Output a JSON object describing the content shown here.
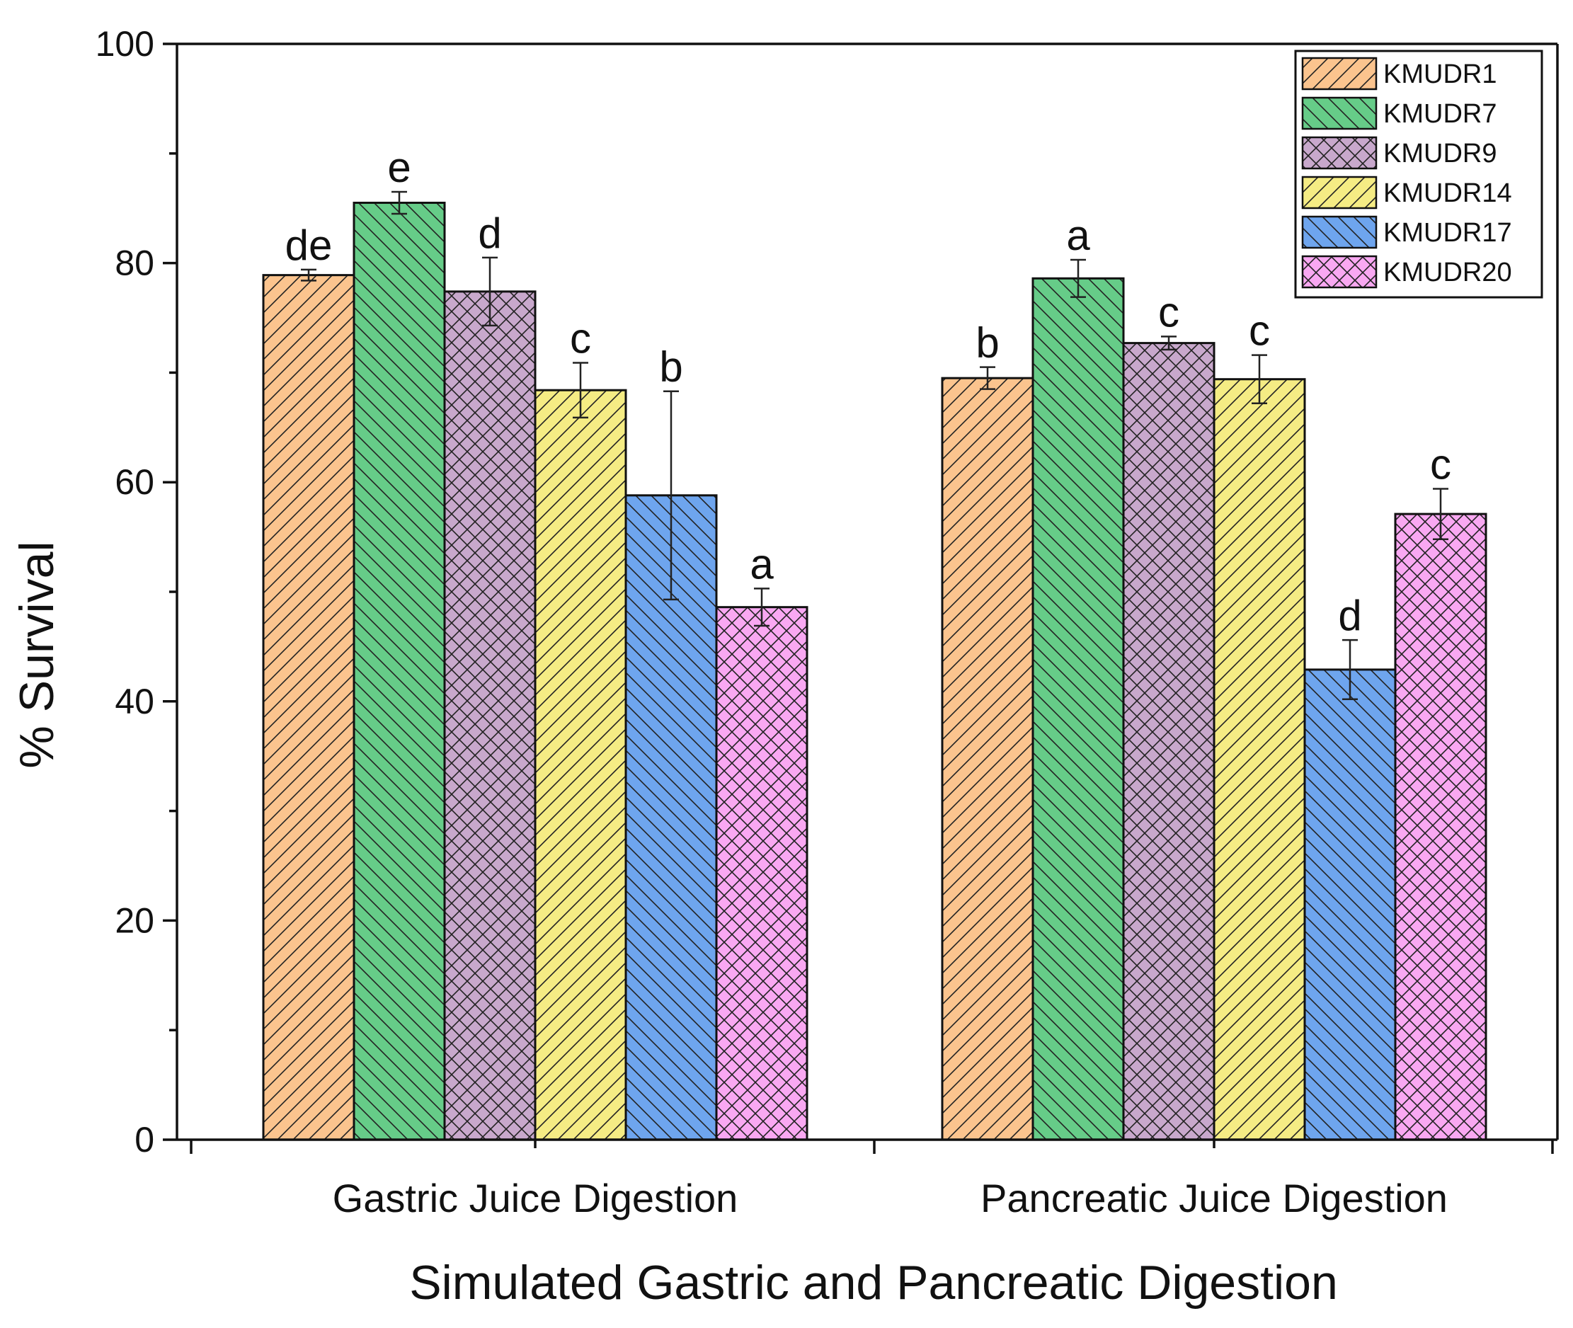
{
  "chart_data": {
    "type": "bar",
    "title": "",
    "xlabel": "Simulated Gastric and Pancreatic Digestion",
    "ylabel": "% Survival",
    "ylim": [
      0,
      100
    ],
    "yticks": [
      0,
      20,
      40,
      60,
      80,
      100
    ],
    "grid": false,
    "legend_position": "top-right",
    "categories": [
      "Gastric Juice Digestion",
      "Pancreatic Juice Digestion"
    ],
    "series": [
      {
        "name": "KMUDR1",
        "color": "#FBC48E",
        "pattern": "diag-right",
        "values": [
          78.9,
          69.5
        ],
        "errors": [
          0.5,
          1.0
        ],
        "sig": [
          "de",
          "b"
        ]
      },
      {
        "name": "KMUDR7",
        "color": "#66CC88",
        "pattern": "diag-left",
        "values": [
          85.5,
          78.6
        ],
        "errors": [
          1.0,
          1.7
        ],
        "sig": [
          "e",
          "a"
        ]
      },
      {
        "name": "KMUDR9",
        "color": "#C8A8CC",
        "pattern": "cross",
        "values": [
          77.4,
          72.7
        ],
        "errors": [
          3.1,
          0.6
        ],
        "sig": [
          "d",
          "c"
        ]
      },
      {
        "name": "KMUDR14",
        "color": "#F5EC84",
        "pattern": "diag-right",
        "values": [
          68.4,
          69.4
        ],
        "errors": [
          2.5,
          2.2
        ],
        "sig": [
          "c",
          "c"
        ]
      },
      {
        "name": "KMUDR17",
        "color": "#6EA5EE",
        "pattern": "diag-left",
        "values": [
          58.8,
          42.9
        ],
        "errors": [
          9.5,
          2.7
        ],
        "sig": [
          "b",
          "d"
        ]
      },
      {
        "name": "KMUDR20",
        "color": "#F9A8F2",
        "pattern": "cross",
        "values": [
          48.6,
          57.1
        ],
        "errors": [
          1.7,
          2.3
        ],
        "sig": [
          "a",
          "c"
        ]
      }
    ]
  }
}
